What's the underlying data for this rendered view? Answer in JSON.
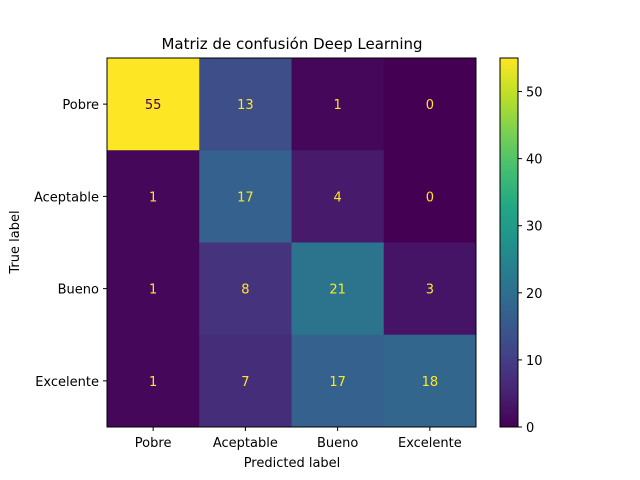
{
  "chart_data": {
    "type": "heatmap",
    "title": "Matriz de confusión Deep Learning",
    "xlabel": "Predicted label",
    "ylabel": "True label",
    "x_categories": [
      "Pobre",
      "Aceptable",
      "Bueno",
      "Excelente"
    ],
    "y_categories": [
      "Pobre",
      "Aceptable",
      "Bueno",
      "Excelente"
    ],
    "values": [
      [
        55,
        13,
        1,
        0
      ],
      [
        1,
        17,
        4,
        0
      ],
      [
        1,
        8,
        21,
        3
      ],
      [
        1,
        7,
        17,
        18
      ]
    ],
    "colormap": "viridis",
    "value_range": [
      0,
      55
    ],
    "colorbar_ticks": [
      0,
      10,
      20,
      30,
      40,
      50
    ],
    "text_colors": {
      "on_dark": "#fde725",
      "on_light": "#440154"
    }
  }
}
